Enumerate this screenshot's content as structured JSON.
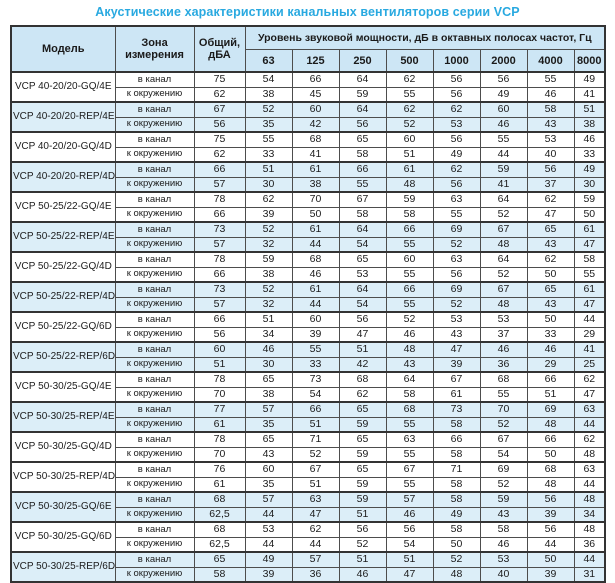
{
  "page_title": "Акустические характеристики канальных вентиляторов  серии VCP",
  "colors": {
    "title": "#29A9E0",
    "header_bg": "#CDE6F5",
    "row_shade": "#DCEEF8",
    "border": "#4D4D4D",
    "text": "#1B1B1B"
  },
  "table": {
    "headers": {
      "model": "Модель",
      "zone": "Зона измерения",
      "total": "Общий, дБА",
      "band_group": "Уровень звуковой мощности, дБ в октавных полосах частот, Гц",
      "frequencies": [
        "63",
        "125",
        "250",
        "500",
        "1000",
        "2000",
        "4000",
        "8000"
      ]
    },
    "groups": [
      {
        "model": "VCP 40-20/20-GQ/4E",
        "shaded": false,
        "rows": [
          {
            "zone": "в канал",
            "total": "75",
            "bands": [
              54,
              66,
              64,
              62,
              56,
              56,
              55,
              49
            ]
          },
          {
            "zone": "к окружению",
            "total": "62",
            "bands": [
              38,
              45,
              59,
              55,
              56,
              49,
              46,
              41
            ]
          }
        ]
      },
      {
        "model": "VCP 40-20/20-REP/4E",
        "shaded": true,
        "rows": [
          {
            "zone": "в канал",
            "total": "67",
            "bands": [
              52,
              60,
              64,
              62,
              62,
              60,
              58,
              51
            ]
          },
          {
            "zone": "к окружению",
            "total": "56",
            "bands": [
              35,
              42,
              56,
              52,
              53,
              46,
              43,
              38
            ]
          }
        ]
      },
      {
        "model": "VCP 40-20/20-GQ/4D",
        "shaded": false,
        "rows": [
          {
            "zone": "в канал",
            "total": "75",
            "bands": [
              55,
              68,
              65,
              60,
              56,
              55,
              53,
              46
            ]
          },
          {
            "zone": "к окружению",
            "total": "62",
            "bands": [
              33,
              41,
              58,
              51,
              49,
              44,
              40,
              33
            ]
          }
        ]
      },
      {
        "model": "VCP 40-20/20-REP/4D",
        "shaded": true,
        "rows": [
          {
            "zone": "в канал",
            "total": "66",
            "bands": [
              51,
              61,
              66,
              61,
              62,
              59,
              56,
              49
            ]
          },
          {
            "zone": "к окружению",
            "total": "57",
            "bands": [
              30,
              38,
              55,
              48,
              56,
              41,
              37,
              30
            ]
          }
        ]
      },
      {
        "model": "VCP 50-25/22-GQ/4E",
        "shaded": false,
        "rows": [
          {
            "zone": "в канал",
            "total": "78",
            "bands": [
              62,
              70,
              67,
              59,
              63,
              64,
              62,
              59
            ]
          },
          {
            "zone": "к окружению",
            "total": "66",
            "bands": [
              39,
              50,
              58,
              58,
              55,
              52,
              47,
              50
            ]
          }
        ]
      },
      {
        "model": "VCP 50-25/22-REP/4E",
        "shaded": true,
        "rows": [
          {
            "zone": "в канал",
            "total": "73",
            "bands": [
              52,
              61,
              64,
              66,
              69,
              67,
              65,
              61
            ]
          },
          {
            "zone": "к окружению",
            "total": "57",
            "bands": [
              32,
              44,
              54,
              55,
              52,
              48,
              43,
              47
            ]
          }
        ]
      },
      {
        "model": "VCP 50-25/22-GQ/4D",
        "shaded": false,
        "rows": [
          {
            "zone": "в канал",
            "total": "78",
            "bands": [
              59,
              68,
              65,
              60,
              63,
              64,
              62,
              58
            ]
          },
          {
            "zone": "к окружению",
            "total": "66",
            "bands": [
              38,
              46,
              53,
              55,
              56,
              52,
              50,
              55
            ]
          }
        ]
      },
      {
        "model": "VCP 50-25/22-REP/4D",
        "shaded": true,
        "rows": [
          {
            "zone": "в канал",
            "total": "73",
            "bands": [
              52,
              61,
              64,
              66,
              69,
              67,
              65,
              61
            ]
          },
          {
            "zone": "к окружению",
            "total": "57",
            "bands": [
              32,
              44,
              54,
              55,
              52,
              48,
              43,
              47
            ]
          }
        ]
      },
      {
        "model": "VCP 50-25/22-GQ/6D",
        "shaded": false,
        "rows": [
          {
            "zone": "в канал",
            "total": "66",
            "bands": [
              51,
              60,
              56,
              52,
              53,
              53,
              50,
              44
            ]
          },
          {
            "zone": "к окружению",
            "total": "56",
            "bands": [
              34,
              39,
              47,
              46,
              43,
              37,
              33,
              29
            ]
          }
        ]
      },
      {
        "model": "VCP 50-25/22-REP/6D",
        "shaded": true,
        "rows": [
          {
            "zone": "в канал",
            "total": "60",
            "bands": [
              46,
              55,
              51,
              48,
              47,
              46,
              46,
              41
            ]
          },
          {
            "zone": "к окружению",
            "total": "51",
            "bands": [
              30,
              33,
              42,
              43,
              39,
              36,
              29,
              25
            ]
          }
        ]
      },
      {
        "model": "VCP 50-30/25-GQ/4E",
        "shaded": false,
        "rows": [
          {
            "zone": "в канал",
            "total": "78",
            "bands": [
              65,
              73,
              68,
              64,
              67,
              68,
              66,
              62
            ]
          },
          {
            "zone": "к окружению",
            "total": "70",
            "bands": [
              38,
              54,
              62,
              58,
              61,
              55,
              51,
              47
            ]
          }
        ]
      },
      {
        "model": "VCP 50-30/25-REP/4E",
        "shaded": true,
        "rows": [
          {
            "zone": "в канал",
            "total": "77",
            "bands": [
              57,
              66,
              65,
              68,
              73,
              70,
              69,
              63
            ]
          },
          {
            "zone": "к окружению",
            "total": "61",
            "bands": [
              35,
              51,
              59,
              55,
              58,
              52,
              48,
              44
            ]
          }
        ]
      },
      {
        "model": "VCP 50-30/25-GQ/4D",
        "shaded": false,
        "rows": [
          {
            "zone": "в канал",
            "total": "78",
            "bands": [
              65,
              71,
              65,
              63,
              66,
              67,
              66,
              62
            ]
          },
          {
            "zone": "к окружению",
            "total": "70",
            "bands": [
              43,
              52,
              59,
              55,
              58,
              54,
              50,
              48
            ]
          }
        ]
      },
      {
        "model": "VCP 50-30/25-REP/4D",
        "shaded": false,
        "rows": [
          {
            "zone": "в канал",
            "total": "76",
            "bands": [
              60,
              67,
              65,
              67,
              71,
              69,
              68,
              63
            ]
          },
          {
            "zone": "к окружению",
            "total": "61",
            "bands": [
              35,
              51,
              59,
              55,
              58,
              52,
              48,
              44
            ]
          }
        ]
      },
      {
        "model": "VCP 50-30/25-GQ/6E",
        "shaded": true,
        "rows": [
          {
            "zone": "в канал",
            "total": "68",
            "bands": [
              57,
              63,
              59,
              57,
              58,
              59,
              56,
              48
            ]
          },
          {
            "zone": "к окружению",
            "total": "62,5",
            "bands": [
              44,
              47,
              51,
              46,
              49,
              43,
              39,
              34
            ]
          }
        ]
      },
      {
        "model": "VCP 50-30/25-GQ/6D",
        "shaded": false,
        "rows": [
          {
            "zone": "в канал",
            "total": "68",
            "bands": [
              53,
              62,
              56,
              56,
              58,
              58,
              56,
              48
            ]
          },
          {
            "zone": "к окружению",
            "total": "62,5",
            "bands": [
              44,
              44,
              52,
              54,
              50,
              46,
              44,
              36
            ]
          }
        ]
      },
      {
        "model": "VCP 50-30/25-REP/6D",
        "shaded": true,
        "rows": [
          {
            "zone": "в канал",
            "total": "65",
            "bands": [
              49,
              57,
              51,
              51,
              52,
              53,
              50,
              44
            ]
          },
          {
            "zone": "к окружению",
            "total": "58",
            "bands": [
              39,
              36,
              46,
              47,
              48,
              40,
              39,
              31
            ]
          }
        ]
      }
    ]
  }
}
